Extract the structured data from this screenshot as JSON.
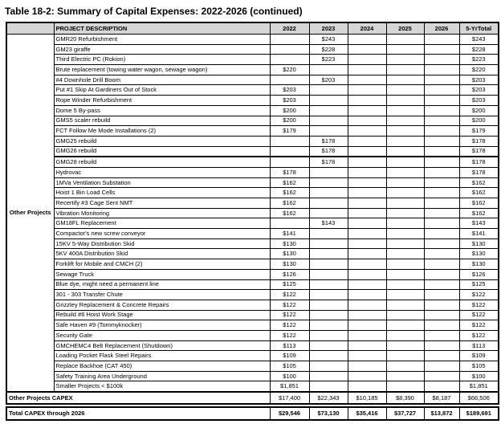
{
  "page": {
    "title": "Table 18-2: Summary of Capital Expenses: 2022-2026 (continued)"
  },
  "table": {
    "group_label": "Other Projects",
    "columns": [
      "PROJECT DESCRIPTION",
      "2022",
      "2023",
      "2024",
      "2025",
      "2026",
      "5-YrTotal"
    ],
    "rows": [
      {
        "desc": "GMR20 Refurbishment",
        "values": [
          "",
          "$243",
          "",
          "",
          "",
          "$243"
        ]
      },
      {
        "desc": "GM23 giraffe",
        "values": [
          "",
          "$228",
          "",
          "",
          "",
          "$228"
        ]
      },
      {
        "desc": "Third Electric PC (Rokion)",
        "values": [
          "",
          "$223",
          "",
          "",
          "",
          "$223"
        ]
      },
      {
        "desc": "Brute replacement (towing water wagon, sewage wagon)",
        "values": [
          "$220",
          "",
          "",
          "",
          "",
          "$220"
        ]
      },
      {
        "desc": "#4 Downhole Drill Boom",
        "values": [
          "",
          "$203",
          "",
          "",
          "",
          "$203"
        ]
      },
      {
        "desc": "Put #1 Skip At Gardiners Out of Stock",
        "values": [
          "$203",
          "",
          "",
          "",
          "",
          "$203"
        ]
      },
      {
        "desc": "Rope Winder Refurbishment",
        "values": [
          "$203",
          "",
          "",
          "",
          "",
          "$203"
        ]
      },
      {
        "desc": "Dome 5 By-pass",
        "values": [
          "$200",
          "",
          "",
          "",
          "",
          "$200"
        ]
      },
      {
        "desc": "GMS5 scaler rebuild",
        "values": [
          "$200",
          "",
          "",
          "",
          "",
          "$200"
        ]
      },
      {
        "desc": "FCT Follow Me Mode Installations (2)",
        "values": [
          "$179",
          "",
          "",
          "",
          "",
          "$179"
        ]
      },
      {
        "desc": "GMG25 rebuild",
        "values": [
          "",
          "$178",
          "",
          "",
          "",
          "$178"
        ]
      },
      {
        "desc": "GMG26 rebuild",
        "values": [
          "",
          "$178",
          "",
          "",
          "",
          "$178"
        ],
        "thick": true
      },
      {
        "desc": "GMG28 rebuild",
        "values": [
          "",
          "$178",
          "",
          "",
          "",
          "$178"
        ]
      },
      {
        "desc": "Hydrovac",
        "values": [
          "$178",
          "",
          "",
          "",
          "",
          "$178"
        ]
      },
      {
        "desc": "1MVa Ventilation Substation",
        "values": [
          "$162",
          "",
          "",
          "",
          "",
          "$162"
        ]
      },
      {
        "desc": "Hoist 1 Bin Load Cells",
        "values": [
          "$162",
          "",
          "",
          "",
          "",
          "$162"
        ]
      },
      {
        "desc": "Recertify #3 Cage Sent NMT",
        "values": [
          "$162",
          "",
          "",
          "",
          "",
          "$162"
        ]
      },
      {
        "desc": "Vibration Monitoring",
        "values": [
          "$162",
          "",
          "",
          "",
          "",
          "$162"
        ]
      },
      {
        "desc": "GM18FL Replacement",
        "values": [
          "",
          "$143",
          "",
          "",
          "",
          "$143"
        ]
      },
      {
        "desc": "Compactor's new screw conveyor",
        "values": [
          "$141",
          "",
          "",
          "",
          "",
          "$141"
        ]
      },
      {
        "desc": "15KV 5-Way Distribution Skid",
        "values": [
          "$130",
          "",
          "",
          "",
          "",
          "$130"
        ]
      },
      {
        "desc": "5KV 400A Distribution Skid",
        "values": [
          "$130",
          "",
          "",
          "",
          "",
          "$130"
        ]
      },
      {
        "desc": "Forklift for Mobile and CMCH (2)",
        "values": [
          "$130",
          "",
          "",
          "",
          "",
          "$130"
        ]
      },
      {
        "desc": "Sewage Truck",
        "values": [
          "$126",
          "",
          "",
          "",
          "",
          "$126"
        ]
      },
      {
        "desc": "Blue dye, might need a permanent line",
        "values": [
          "$125",
          "",
          "",
          "",
          "",
          "$125"
        ]
      },
      {
        "desc": "301 - 303 Transfer Chute",
        "values": [
          "$122",
          "",
          "",
          "",
          "",
          "$122"
        ]
      },
      {
        "desc": "Grizzley Replacement & Concrete Repairs",
        "values": [
          "$122",
          "",
          "",
          "",
          "",
          "$122"
        ]
      },
      {
        "desc": "Rebuild #6 Hoist Work Stage",
        "values": [
          "$122",
          "",
          "",
          "",
          "",
          "$122"
        ]
      },
      {
        "desc": "Safe Haven #9 (Tommyknocker)",
        "values": [
          "$122",
          "",
          "",
          "",
          "",
          "$122"
        ]
      },
      {
        "desc": "Security Gate",
        "values": [
          "$122",
          "",
          "",
          "",
          "",
          "$122"
        ]
      },
      {
        "desc": "GMCHEMC4 Belt Replacement (Shutdown)",
        "values": [
          "$113",
          "",
          "",
          "",
          "",
          "$113"
        ]
      },
      {
        "desc": "Loading Pocket Flask Steel Repairs",
        "values": [
          "$109",
          "",
          "",
          "",
          "",
          "$109"
        ]
      },
      {
        "desc": "Replace Backhoe (CAT 450)",
        "values": [
          "$105",
          "",
          "",
          "",
          "",
          "$105"
        ]
      },
      {
        "desc": "Safety Training Area Underground",
        "values": [
          "$100",
          "",
          "",
          "",
          "",
          "$100"
        ]
      },
      {
        "desc": "Smaller Projects < $100k",
        "values": [
          "$1,851",
          "",
          "",
          "",
          "",
          "$1,851"
        ]
      }
    ],
    "capex_row": {
      "label": "Other Projects CAPEX",
      "values": [
        "$17,400",
        "$22,343",
        "$10,185",
        "$8,390",
        "$8,187",
        "$66,506"
      ]
    },
    "total_row": {
      "label": "Total CAPEX through 2026",
      "values": [
        "$29,546",
        "$73,130",
        "$35,416",
        "$37,727",
        "$13,872",
        "$189,691"
      ]
    }
  }
}
